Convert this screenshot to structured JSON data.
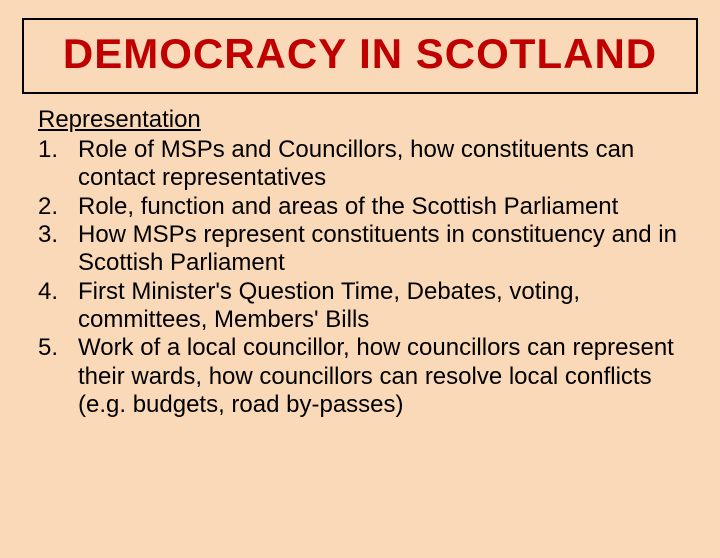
{
  "slide": {
    "background_color": "#fad9b8",
    "title": {
      "text": "DEMOCRACY IN SCOTLAND",
      "color": "#c00000",
      "border_color": "#000000",
      "font_size": 42,
      "font_weight": "bold"
    },
    "section": {
      "heading": "Representation",
      "heading_underline": true,
      "text_color": "#000000",
      "font_size": 24,
      "items": [
        {
          "num": "1.",
          "text": "Role of MSPs and Councillors, how constituents can contact representatives"
        },
        {
          "num": "2.",
          "text": "Role, function and areas of the Scottish Parliament"
        },
        {
          "num": "3.",
          "text": "How MSPs represent constituents in constituency and in Scottish Parliament"
        },
        {
          "num": "4.",
          "text": "First Minister's Question Time, Debates, voting, committees, Members' Bills"
        },
        {
          "num": "5.",
          "text": "Work of a local councillor, how councillors can represent their wards, how councillors can resolve local conflicts (e.g. budgets, road by-passes)"
        }
      ]
    }
  }
}
